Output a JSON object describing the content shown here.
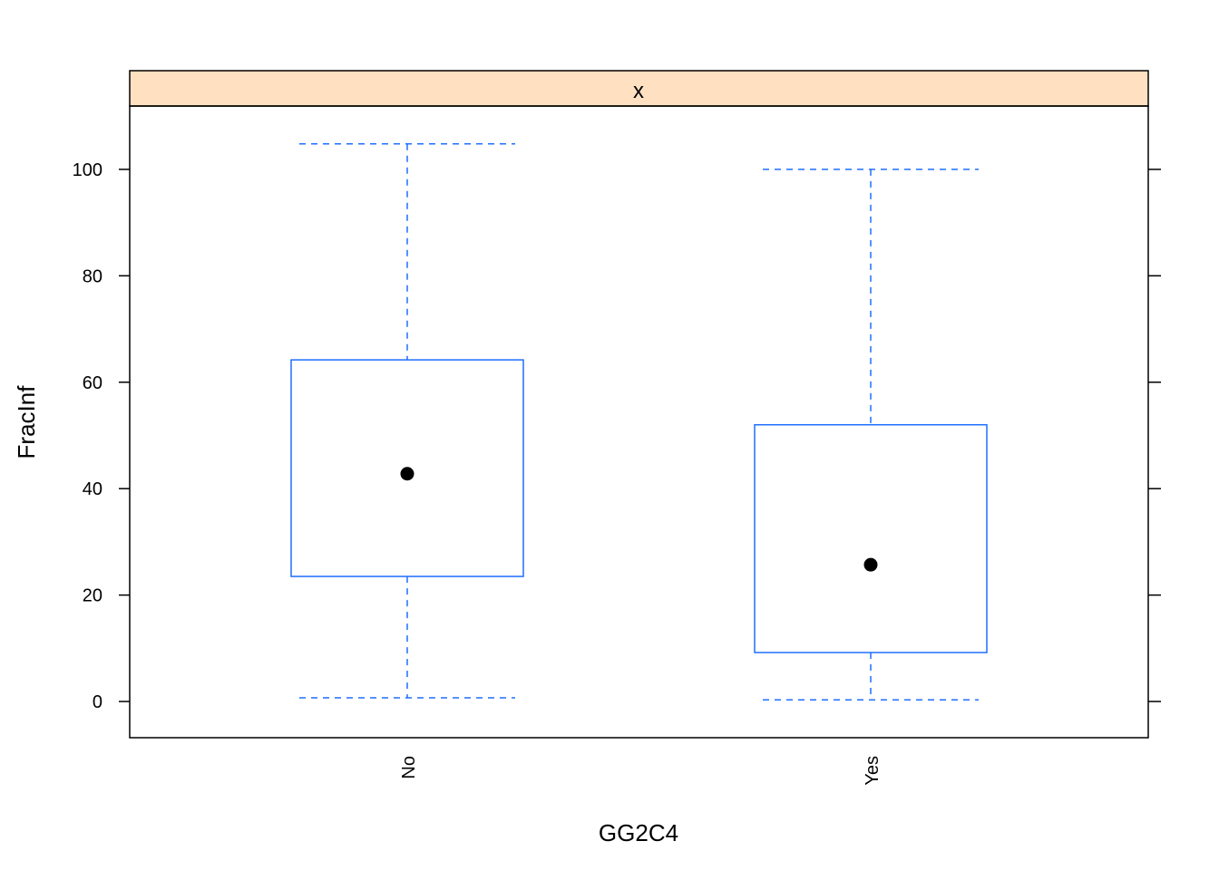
{
  "chart_data": {
    "type": "boxplot",
    "strip_label": "x",
    "xlabel": "GG2C4",
    "ylabel": "FracInf",
    "ylim": [
      -6.8,
      111.9
    ],
    "yticks": [
      0,
      20,
      40,
      60,
      80,
      100
    ],
    "categories": [
      "No",
      "Yes"
    ],
    "boxes": [
      {
        "category": "No",
        "lower_whisker": 0.7,
        "q1": 23.5,
        "median": 42.8,
        "q3": 64.2,
        "upper_whisker": 104.8
      },
      {
        "category": "Yes",
        "lower_whisker": 0.3,
        "q1": 9.2,
        "median": 25.7,
        "q3": 52.0,
        "upper_whisker": 100.0
      }
    ],
    "colors": {
      "box": "#1f6fff",
      "strip": "#ffe0c0",
      "median_dot": "#000000"
    }
  }
}
